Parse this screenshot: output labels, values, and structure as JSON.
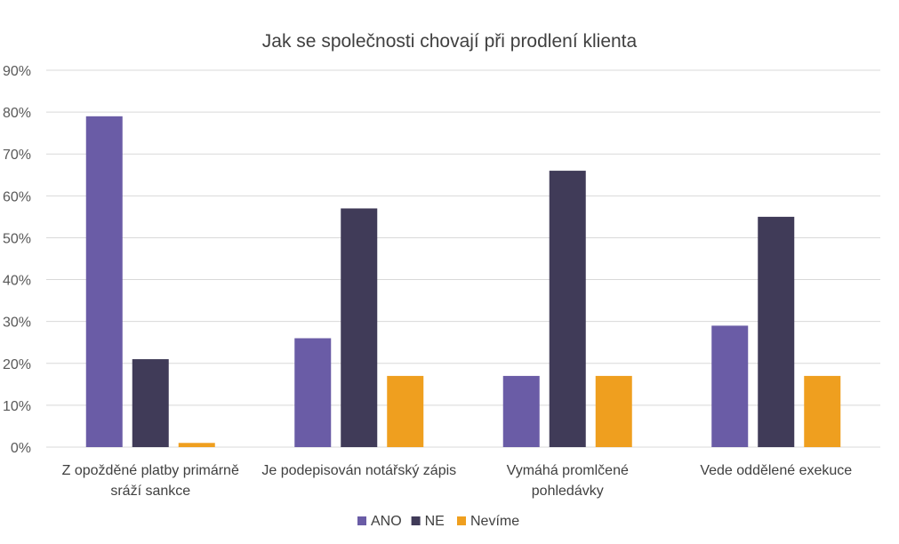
{
  "chart_data": {
    "type": "bar",
    "title": "Jak se společnosti chovají při prodlení klienta",
    "xlabel": "",
    "ylabel": "",
    "ylim": [
      0,
      90
    ],
    "y_ticks": [
      "0%",
      "10%",
      "20%",
      "30%",
      "40%",
      "50%",
      "60%",
      "70%",
      "80%",
      "90%"
    ],
    "y_tick_values": [
      0,
      10,
      20,
      30,
      40,
      50,
      60,
      70,
      80,
      90
    ],
    "grid": true,
    "legend_position": "bottom",
    "categories": [
      [
        "Z opožděné platby primárně",
        "sráží sankce"
      ],
      [
        "Je podepisován notářský zápis"
      ],
      [
        "Vymáhá promlčené",
        "pohledávky"
      ],
      [
        "Vede oddělené exekuce"
      ]
    ],
    "series": [
      {
        "name": "ANO",
        "color": "#6a5ca6",
        "values": [
          79,
          26,
          17,
          29
        ]
      },
      {
        "name": "NE",
        "color": "#403b58",
        "values": [
          21,
          57,
          66,
          55
        ]
      },
      {
        "name": "Nevíme",
        "color": "#ef9f1f",
        "values": [
          1,
          17,
          17,
          17
        ]
      }
    ]
  }
}
